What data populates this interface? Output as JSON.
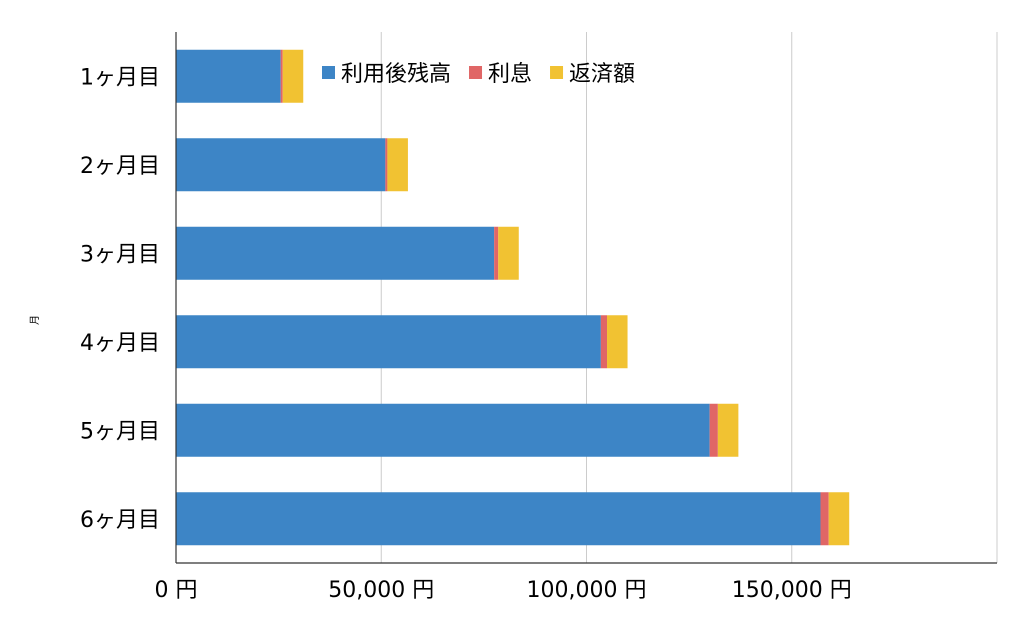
{
  "chart_data": {
    "type": "bar",
    "orientation": "horizontal",
    "stacked": true,
    "categories": [
      "1ヶ月目",
      "2ヶ月目",
      "3ヶ月目",
      "4ヶ月目",
      "5ヶ月目",
      "6ヶ月目"
    ],
    "series": [
      {
        "name": "利用後残高",
        "color": "#3d85c6",
        "values": [
          25500,
          51000,
          77500,
          103500,
          130000,
          157000
        ]
      },
      {
        "name": "利息",
        "color": "#e06666",
        "values": [
          500,
          500,
          1000,
          1500,
          2000,
          2000
        ]
      },
      {
        "name": "返済額",
        "color": "#f1c232",
        "values": [
          5000,
          5000,
          5000,
          5000,
          5000,
          5000
        ]
      }
    ],
    "x_ticks": [
      "0 円",
      "50,000 円",
      "100,000 円",
      "150,000 円"
    ],
    "x_tick_values": [
      0,
      50000,
      100000,
      150000
    ],
    "xlim": [
      0,
      200000
    ],
    "ylabel": "月",
    "xlabel": "",
    "grid": "vertical",
    "legend_position": "top"
  }
}
